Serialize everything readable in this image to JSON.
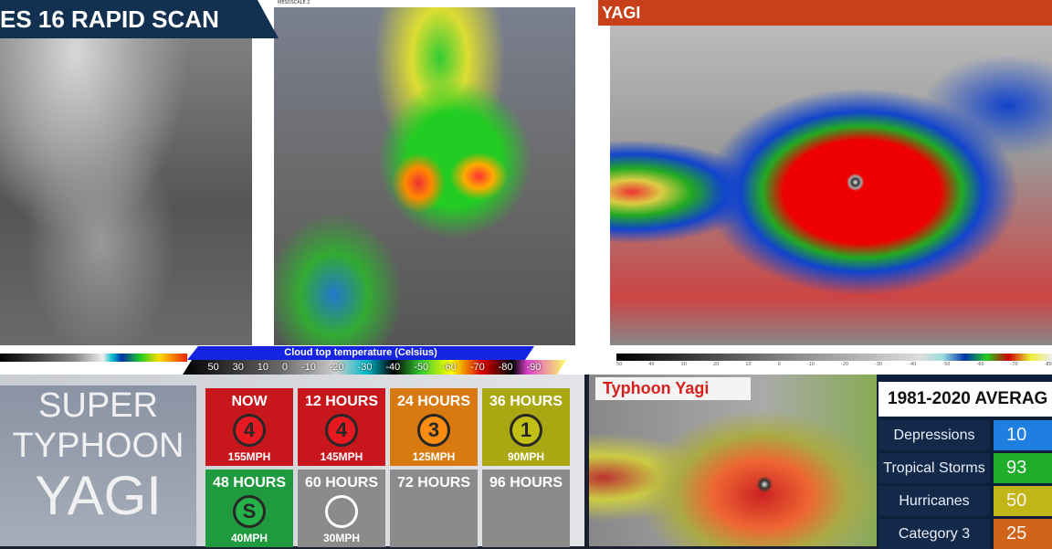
{
  "top_left": {
    "title": "ES 16 RAPID SCAN",
    "sat_header": "MESOSCALE 2",
    "colorbar_title": "Cloud top temperature (Celsius)",
    "colorbar_ticks": [
      "50",
      "30",
      "10",
      "0",
      "-10",
      "-20",
      "-30",
      "-40",
      "-50",
      "-60",
      "-70",
      "-80",
      "-90"
    ]
  },
  "top_right": {
    "title": "YAGI",
    "colorbar_ticks": [
      "50",
      "40",
      "30",
      "20",
      "10",
      "0",
      "-10",
      "-20",
      "-30",
      "-40",
      "-50",
      "-60",
      "-70",
      "-80"
    ]
  },
  "storm_name": {
    "line1": "SUPER",
    "line2": "TYPHOON",
    "line3": "YAGI"
  },
  "forecast": [
    {
      "label": "NOW",
      "category": "4",
      "wind": "155MPH",
      "color": "#c8161d"
    },
    {
      "label": "12 HOURS",
      "category": "4",
      "wind": "145MPH",
      "color": "#c8161d"
    },
    {
      "label": "24 HOURS",
      "category": "3",
      "wind": "125MPH",
      "color": "#d97a10"
    },
    {
      "label": "36 HOURS",
      "category": "1",
      "wind": "90MPH",
      "color": "#a9a712"
    },
    {
      "label": "48 HOURS",
      "category": "S",
      "wind": "40MPH",
      "color": "#1f9a3e"
    },
    {
      "label": "60 HOURS",
      "category": "",
      "wind": "30MPH",
      "color": "#8b8b8b"
    },
    {
      "label": "72 HOURS",
      "category": "",
      "wind": "",
      "color": "#8b8b8b"
    },
    {
      "label": "96 HOURS",
      "category": "",
      "wind": "",
      "color": "#8b8b8b"
    }
  ],
  "bottom_right": {
    "label": "Typhoon Yagi",
    "stats_title": "1981-2020 AVERAG",
    "rows": [
      {
        "label": "Depressions",
        "value": "10",
        "color": "#1e7fe0"
      },
      {
        "label": "Tropical Storms",
        "value": "93",
        "color": "#1fae2a"
      },
      {
        "label": "Hurricanes",
        "value": "50",
        "color": "#c2b616"
      },
      {
        "label": "Category 3",
        "value": "25",
        "color": "#d2641a"
      }
    ]
  }
}
